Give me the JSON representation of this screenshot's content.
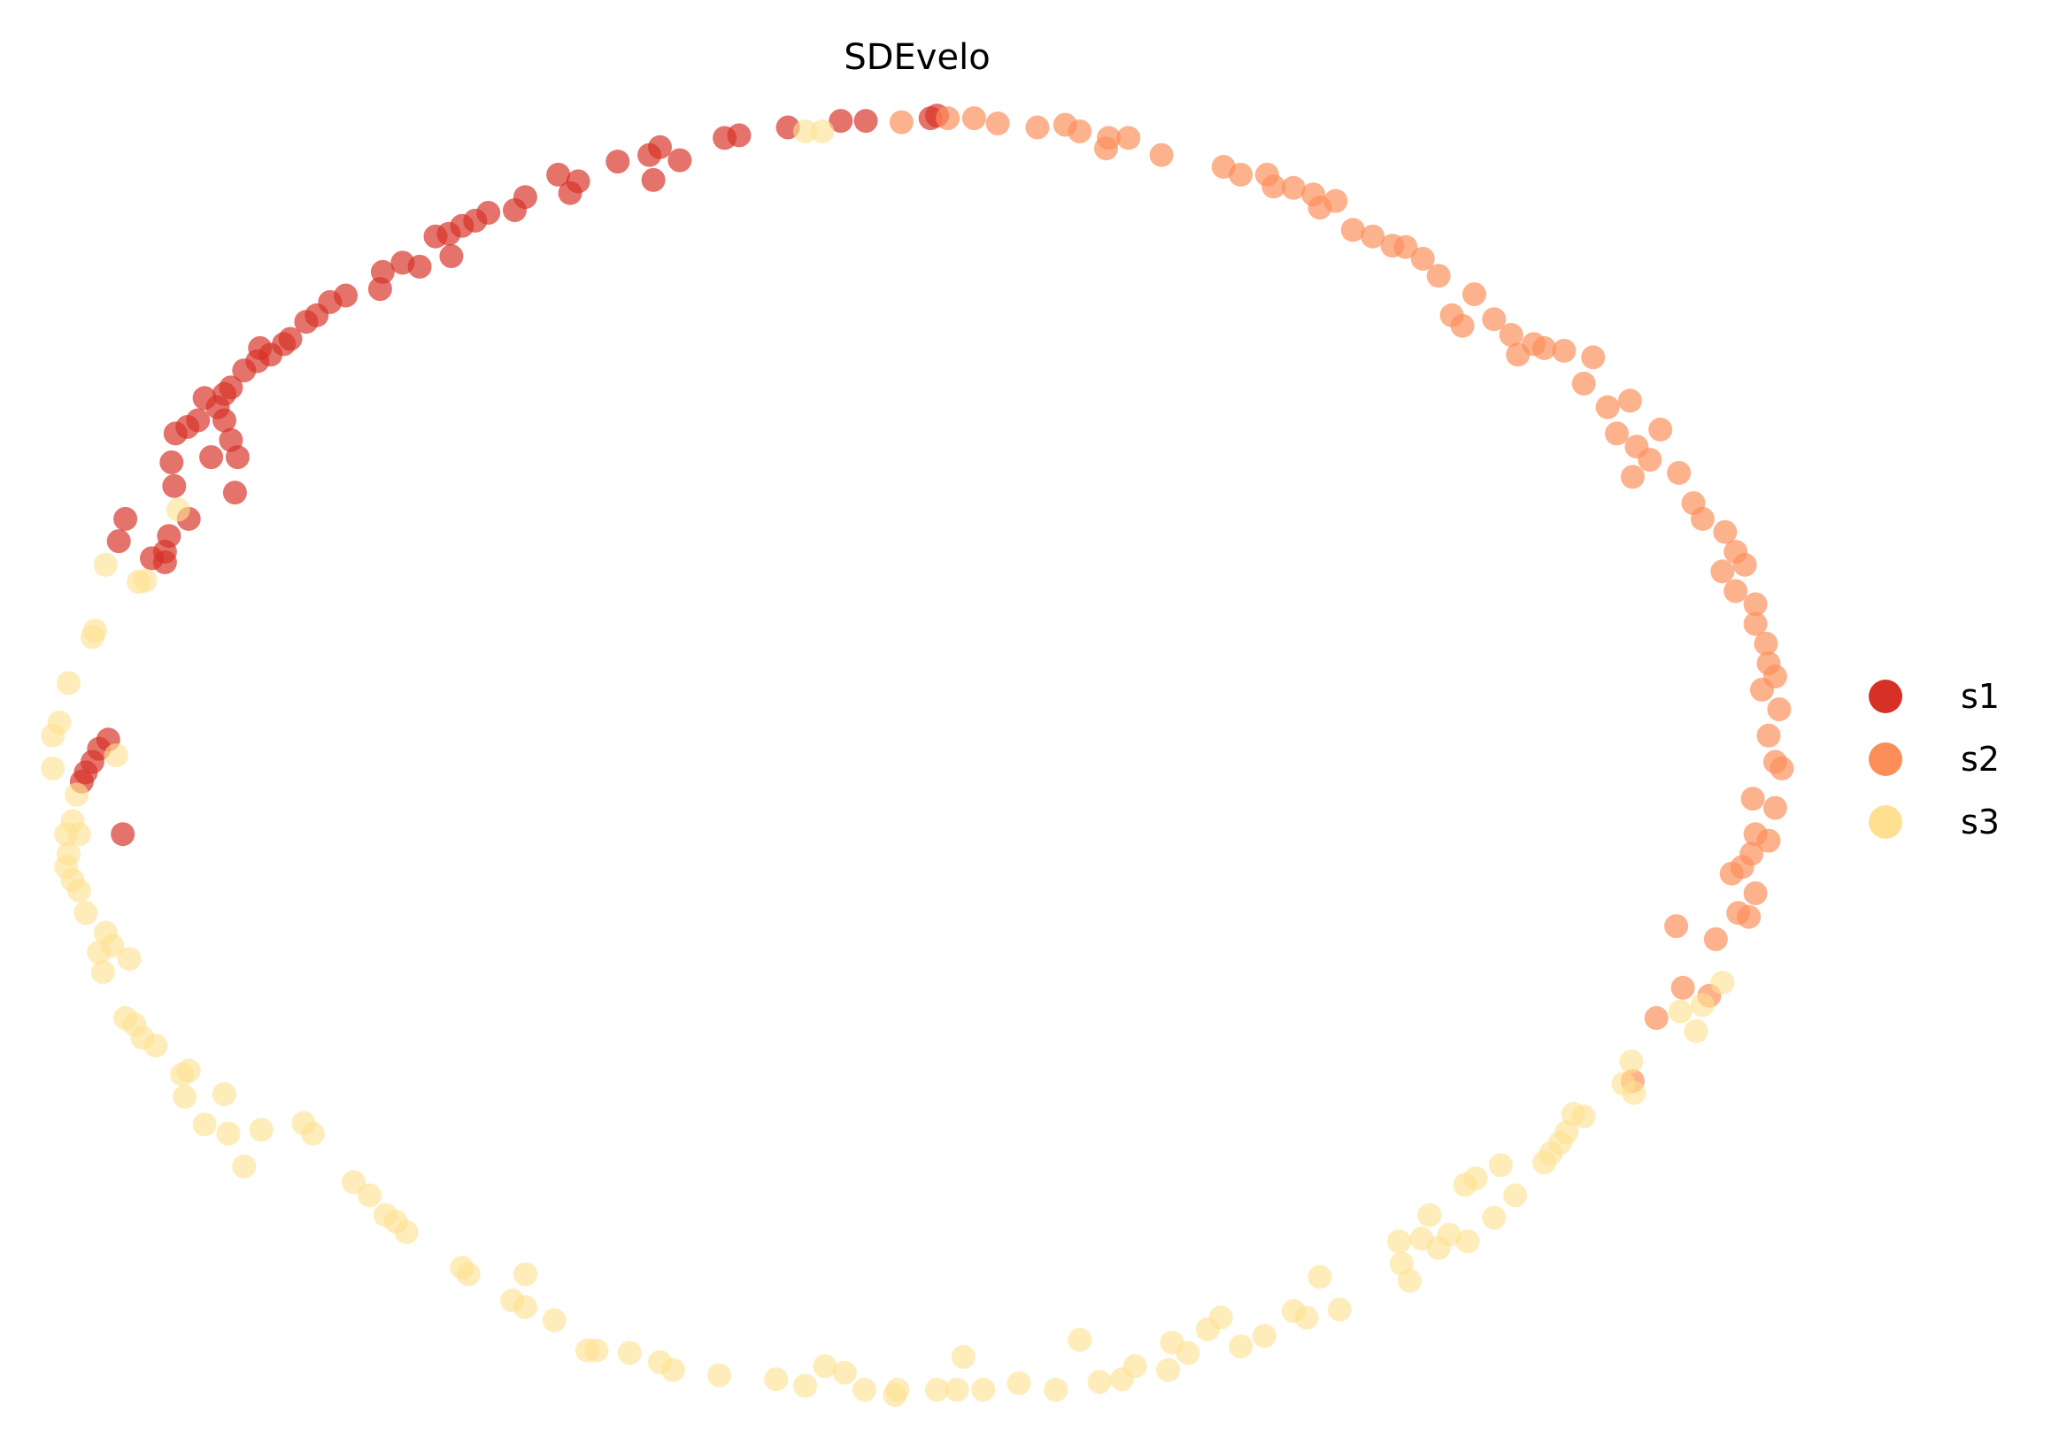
{
  "chart_data": {
    "type": "scatter",
    "title": "SDEvelo",
    "xlabel": "",
    "ylabel": "",
    "grid": false,
    "axes_visible": false,
    "xlim": [
      0,
      15.6
    ],
    "ylim": [
      0,
      11
    ],
    "legend_position": "right",
    "series": [
      {
        "name": "s1",
        "color": "#d73027",
        "points": [
          [
            6.37,
            10.08
          ],
          [
            5.97,
            10.03
          ],
          [
            6.56,
            10.08
          ],
          [
            5.49,
            9.95
          ],
          [
            5.6,
            9.97
          ],
          [
            5.0,
            9.88
          ],
          [
            5.15,
            9.78
          ],
          [
            4.92,
            9.82
          ],
          [
            4.68,
            9.77
          ],
          [
            4.95,
            9.63
          ],
          [
            4.23,
            9.67
          ],
          [
            4.32,
            9.53
          ],
          [
            4.38,
            9.62
          ],
          [
            3.98,
            9.5
          ],
          [
            3.9,
            9.4
          ],
          [
            3.7,
            9.38
          ],
          [
            3.6,
            9.32
          ],
          [
            3.5,
            9.28
          ],
          [
            3.4,
            9.22
          ],
          [
            3.3,
            9.2
          ],
          [
            3.42,
            9.05
          ],
          [
            3.18,
            8.97
          ],
          [
            3.05,
            9.0
          ],
          [
            2.9,
            8.93
          ],
          [
            2.88,
            8.8
          ],
          [
            2.62,
            8.75
          ],
          [
            2.5,
            8.7
          ],
          [
            2.4,
            8.6
          ],
          [
            2.32,
            8.55
          ],
          [
            2.2,
            8.42
          ],
          [
            2.15,
            8.38
          ],
          [
            2.05,
            8.3
          ],
          [
            1.97,
            8.35
          ],
          [
            1.95,
            8.25
          ],
          [
            1.85,
            8.18
          ],
          [
            1.75,
            8.05
          ],
          [
            1.7,
            8.0
          ],
          [
            1.55,
            7.97
          ],
          [
            1.65,
            7.9
          ],
          [
            1.5,
            7.8
          ],
          [
            1.42,
            7.75
          ],
          [
            1.33,
            7.7
          ],
          [
            1.7,
            7.8
          ],
          [
            1.75,
            7.65
          ],
          [
            1.6,
            7.52
          ],
          [
            1.8,
            7.52
          ],
          [
            1.3,
            7.48
          ],
          [
            1.78,
            7.25
          ],
          [
            1.32,
            7.3
          ],
          [
            1.43,
            7.05
          ],
          [
            0.95,
            7.05
          ],
          [
            0.9,
            6.88
          ],
          [
            1.28,
            6.92
          ],
          [
            1.25,
            6.8
          ],
          [
            1.15,
            6.75
          ],
          [
            1.25,
            6.72
          ],
          [
            0.82,
            5.37
          ],
          [
            0.75,
            5.3
          ],
          [
            0.7,
            5.2
          ],
          [
            0.65,
            5.12
          ],
          [
            0.62,
            5.05
          ],
          [
            0.93,
            4.65
          ],
          [
            7.05,
            10.1
          ],
          [
            7.1,
            10.12
          ]
        ]
      },
      {
        "name": "s2",
        "color": "#fc8d59",
        "points": [
          [
            6.83,
            10.07
          ],
          [
            7.18,
            10.1
          ],
          [
            7.38,
            10.1
          ],
          [
            7.56,
            10.06
          ],
          [
            7.86,
            10.03
          ],
          [
            8.07,
            10.05
          ],
          [
            8.18,
            10.0
          ],
          [
            8.4,
            9.95
          ],
          [
            8.55,
            9.95
          ],
          [
            8.38,
            9.87
          ],
          [
            8.8,
            9.82
          ],
          [
            9.27,
            9.73
          ],
          [
            9.4,
            9.67
          ],
          [
            9.6,
            9.67
          ],
          [
            9.65,
            9.58
          ],
          [
            9.8,
            9.57
          ],
          [
            9.95,
            9.52
          ],
          [
            10.0,
            9.42
          ],
          [
            10.12,
            9.47
          ],
          [
            10.25,
            9.25
          ],
          [
            10.4,
            9.2
          ],
          [
            10.55,
            9.13
          ],
          [
            10.65,
            9.12
          ],
          [
            10.78,
            9.03
          ],
          [
            10.9,
            8.9
          ],
          [
            11.17,
            8.76
          ],
          [
            11.0,
            8.6
          ],
          [
            11.08,
            8.52
          ],
          [
            11.32,
            8.57
          ],
          [
            11.45,
            8.45
          ],
          [
            11.5,
            8.3
          ],
          [
            11.62,
            8.38
          ],
          [
            11.7,
            8.35
          ],
          [
            11.85,
            8.33
          ],
          [
            12.07,
            8.28
          ],
          [
            12.0,
            8.08
          ],
          [
            12.18,
            7.9
          ],
          [
            12.35,
            7.95
          ],
          [
            12.25,
            7.7
          ],
          [
            12.4,
            7.6
          ],
          [
            12.58,
            7.73
          ],
          [
            12.5,
            7.5
          ],
          [
            12.37,
            7.37
          ],
          [
            12.72,
            7.4
          ],
          [
            12.83,
            7.17
          ],
          [
            12.9,
            7.05
          ],
          [
            13.07,
            6.95
          ],
          [
            13.15,
            6.8
          ],
          [
            13.05,
            6.65
          ],
          [
            13.22,
            6.7
          ],
          [
            13.15,
            6.5
          ],
          [
            13.3,
            6.4
          ],
          [
            13.3,
            6.25
          ],
          [
            13.38,
            6.1
          ],
          [
            13.4,
            5.95
          ],
          [
            13.45,
            5.85
          ],
          [
            13.35,
            5.75
          ],
          [
            13.48,
            5.6
          ],
          [
            13.4,
            5.4
          ],
          [
            13.45,
            5.2
          ],
          [
            13.5,
            5.15
          ],
          [
            13.28,
            4.92
          ],
          [
            13.45,
            4.85
          ],
          [
            13.3,
            4.65
          ],
          [
            13.4,
            4.6
          ],
          [
            13.27,
            4.5
          ],
          [
            13.2,
            4.4
          ],
          [
            13.12,
            4.35
          ],
          [
            13.3,
            4.2
          ],
          [
            13.17,
            4.05
          ],
          [
            13.25,
            4.02
          ],
          [
            12.7,
            3.95
          ],
          [
            13.0,
            3.85
          ],
          [
            12.75,
            3.48
          ],
          [
            12.95,
            3.42
          ],
          [
            12.55,
            3.25
          ],
          [
            12.37,
            2.77
          ]
        ]
      },
      {
        "name": "s3",
        "color": "#fee090",
        "points": [
          [
            6.1,
            10.0
          ],
          [
            6.23,
            10.0
          ],
          [
            1.35,
            7.12
          ],
          [
            0.8,
            6.7
          ],
          [
            1.05,
            6.57
          ],
          [
            1.1,
            6.58
          ],
          [
            0.7,
            6.15
          ],
          [
            0.72,
            6.2
          ],
          [
            0.52,
            5.8
          ],
          [
            0.45,
            5.5
          ],
          [
            0.4,
            5.4
          ],
          [
            0.88,
            5.25
          ],
          [
            0.4,
            5.15
          ],
          [
            0.58,
            4.95
          ],
          [
            0.55,
            4.75
          ],
          [
            0.5,
            4.65
          ],
          [
            0.6,
            4.65
          ],
          [
            0.52,
            4.5
          ],
          [
            0.5,
            4.4
          ],
          [
            0.55,
            4.3
          ],
          [
            0.6,
            4.22
          ],
          [
            0.65,
            4.05
          ],
          [
            0.8,
            3.9
          ],
          [
            0.85,
            3.8
          ],
          [
            0.75,
            3.75
          ],
          [
            0.98,
            3.7
          ],
          [
            0.78,
            3.6
          ],
          [
            0.95,
            3.25
          ],
          [
            1.02,
            3.2
          ],
          [
            1.08,
            3.1
          ],
          [
            1.18,
            3.04
          ],
          [
            1.43,
            2.85
          ],
          [
            1.38,
            2.82
          ],
          [
            1.4,
            2.65
          ],
          [
            1.7,
            2.67
          ],
          [
            1.55,
            2.44
          ],
          [
            1.73,
            2.37
          ],
          [
            1.98,
            2.4
          ],
          [
            2.3,
            2.45
          ],
          [
            2.37,
            2.37
          ],
          [
            1.85,
            2.12
          ],
          [
            2.68,
            2.0
          ],
          [
            2.8,
            1.9
          ],
          [
            2.92,
            1.75
          ],
          [
            3.0,
            1.7
          ],
          [
            3.08,
            1.62
          ],
          [
            3.5,
            1.35
          ],
          [
            3.55,
            1.3
          ],
          [
            3.98,
            1.3
          ],
          [
            3.88,
            1.1
          ],
          [
            3.98,
            1.05
          ],
          [
            4.2,
            0.95
          ],
          [
            4.45,
            0.72
          ],
          [
            4.52,
            0.72
          ],
          [
            4.77,
            0.7
          ],
          [
            5.0,
            0.63
          ],
          [
            5.1,
            0.57
          ],
          [
            5.45,
            0.53
          ],
          [
            5.88,
            0.5
          ],
          [
            6.1,
            0.45
          ],
          [
            6.25,
            0.6
          ],
          [
            6.4,
            0.55
          ],
          [
            6.55,
            0.42
          ],
          [
            6.78,
            0.38
          ],
          [
            6.8,
            0.42
          ],
          [
            7.1,
            0.42
          ],
          [
            7.25,
            0.42
          ],
          [
            7.3,
            0.67
          ],
          [
            7.45,
            0.42
          ],
          [
            7.72,
            0.47
          ],
          [
            8.0,
            0.42
          ],
          [
            8.18,
            0.8
          ],
          [
            8.33,
            0.48
          ],
          [
            8.5,
            0.5
          ],
          [
            8.6,
            0.6
          ],
          [
            8.85,
            0.57
          ],
          [
            8.88,
            0.78
          ],
          [
            9.0,
            0.7
          ],
          [
            9.15,
            0.88
          ],
          [
            9.25,
            0.97
          ],
          [
            9.4,
            0.75
          ],
          [
            9.58,
            0.83
          ],
          [
            9.8,
            1.02
          ],
          [
            9.9,
            0.97
          ],
          [
            10.0,
            1.28
          ],
          [
            10.15,
            1.03
          ],
          [
            10.6,
            1.55
          ],
          [
            10.62,
            1.38
          ],
          [
            10.68,
            1.25
          ],
          [
            10.77,
            1.57
          ],
          [
            10.83,
            1.75
          ],
          [
            10.9,
            1.5
          ],
          [
            10.98,
            1.6
          ],
          [
            11.12,
            1.55
          ],
          [
            11.1,
            1.98
          ],
          [
            11.18,
            2.03
          ],
          [
            11.32,
            1.73
          ],
          [
            11.37,
            2.13
          ],
          [
            11.48,
            1.9
          ],
          [
            11.7,
            2.15
          ],
          [
            11.75,
            2.22
          ],
          [
            11.82,
            2.3
          ],
          [
            11.87,
            2.38
          ],
          [
            11.92,
            2.52
          ],
          [
            12.0,
            2.5
          ],
          [
            12.3,
            2.75
          ],
          [
            12.36,
            2.92
          ],
          [
            12.38,
            2.68
          ],
          [
            12.73,
            3.3
          ],
          [
            12.85,
            3.15
          ],
          [
            12.9,
            3.35
          ],
          [
            13.05,
            3.52
          ]
        ]
      }
    ]
  }
}
